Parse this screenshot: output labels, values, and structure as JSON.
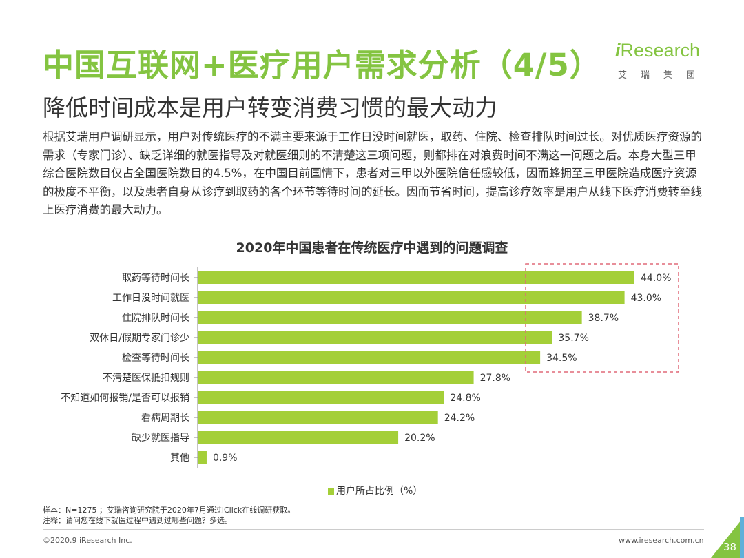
{
  "header": {
    "title": "中国互联网+医疗用户需求分析（4/5）",
    "subtitle": "降低时间成本是用户转变消费习惯的最大动力"
  },
  "logo": {
    "brand_prefix": "i",
    "brand_rest": "Research",
    "chinese": "艾瑞集团"
  },
  "paragraph": "根据艾瑞用户调研显示，用户对传统医疗的不满主要来源于工作日没时间就医，取药、住院、检查排队时间过长。对优质医疗资源的需求（专家门诊）、缺乏详细的就医指导及对就医细则的不清楚这三项问题，则都排在对浪费时间不满这一问题之后。本身大型三甲综合医院数目仅占全国医院数目的4.5%，在中国目前国情下，患者对三甲以外医院信任感较低，因而蜂拥至三甲医院造成医疗资源的极度不平衡，以及患者自身从诊疗到取药的各个环节等待时间的延长。因而节省时间，提高诊疗效率是用户从线下医疗消费转至线上医疗消费的最大动力。",
  "chart_data": {
    "type": "bar",
    "orientation": "horizontal",
    "title": "2020年中国患者在传统医疗中遇到的问题调查",
    "categories": [
      "取药等待时间长",
      "工作日没时间就医",
      "住院排队时间长",
      "双休日/假期专家门诊少",
      "检查等待时间长",
      "不清楚医保抵扣规则",
      "不知道如何报销/是否可以报销",
      "看病周期长",
      "缺少就医指导",
      "其他"
    ],
    "values": [
      44.0,
      43.0,
      38.7,
      35.7,
      34.5,
      27.8,
      24.8,
      24.2,
      20.2,
      0.9
    ],
    "value_labels": [
      "44.0%",
      "43.0%",
      "38.7%",
      "35.7%",
      "34.5%",
      "27.8%",
      "24.8%",
      "24.2%",
      "20.2%",
      "0.9%"
    ],
    "xlim": [
      0,
      44.0
    ],
    "legend": "用户所占比例（%）",
    "legend_position": "bottom",
    "highlight_top_n": 5,
    "bar_color": "#a4cf38",
    "highlight_color": "#e06a78"
  },
  "notes": {
    "sample": "样本：N=1275 ；艾瑞咨询研究院于2020年7月通过iClick在线调研获取。",
    "remark": "注释：请问您在线下就医过程中遇到过哪些问题？多选。"
  },
  "footer": {
    "copyright": "©2020.9 iResearch Inc.",
    "url": "www.iresearch.com.cn",
    "page": "38"
  },
  "colors": {
    "accent_green": "#84c441",
    "corner_blue": "#5fb0d9"
  }
}
